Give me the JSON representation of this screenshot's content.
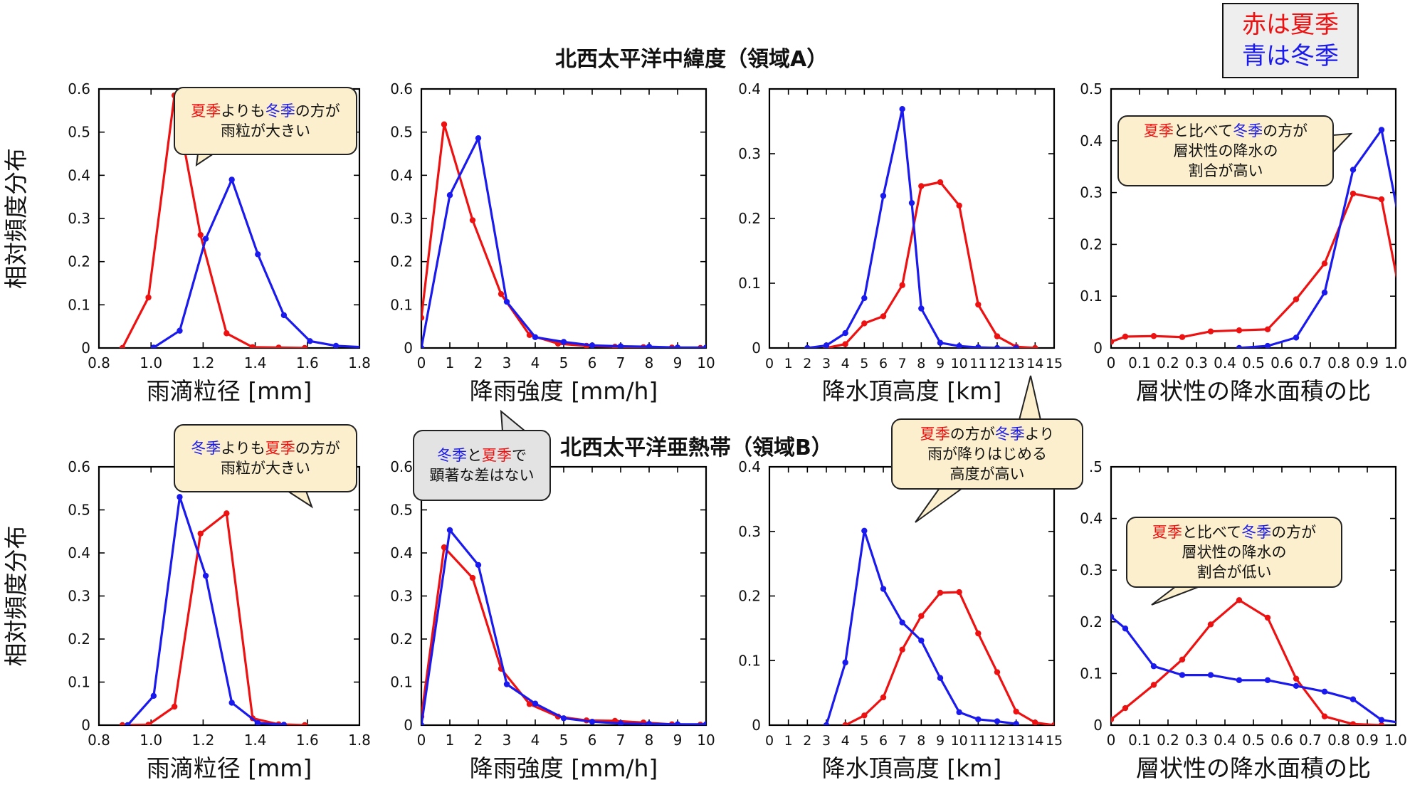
{
  "colors": {
    "summer": "#ee1111",
    "winter": "#1a1aee",
    "axis": "#000000"
  },
  "legend": {
    "summer_label": "赤は夏季",
    "winter_label": "青は冬季"
  },
  "region_titles": {
    "a": "北西太平洋中緯度（領域A）",
    "b": "北西太平洋亜熱帯（領域B）"
  },
  "callouts": [
    {
      "id": "A1",
      "parts": [
        [
          "夏季",
          "r"
        ],
        [
          "よりも",
          ""
        ],
        [
          "冬季",
          "b"
        ],
        [
          "の方が",
          ""
        ]
      ],
      "line2": "雨粒が大きい",
      "line3": ""
    },
    {
      "id": "A4",
      "parts": [
        [
          "夏季",
          "r"
        ],
        [
          "と比べて",
          ""
        ],
        [
          "冬季",
          "b"
        ],
        [
          "の方が",
          ""
        ]
      ],
      "line2": "層状性の降水の",
      "line3": "割合が高い"
    },
    {
      "id": "B1",
      "parts": [
        [
          "冬季",
          "b"
        ],
        [
          "よりも",
          ""
        ],
        [
          "夏季",
          "r"
        ],
        [
          "の方が",
          ""
        ]
      ],
      "line2": "雨粒が大きい",
      "line3": ""
    },
    {
      "id": "B2",
      "parts": [
        [
          "冬季",
          "b"
        ],
        [
          "と",
          ""
        ],
        [
          "夏季",
          "r"
        ],
        [
          "で",
          ""
        ]
      ],
      "line2": "顕著な差はない",
      "line3": ""
    },
    {
      "id": "B3",
      "parts": [
        [
          "夏季",
          "r"
        ],
        [
          "の方が",
          ""
        ],
        [
          "冬季",
          "b"
        ],
        [
          "より",
          ""
        ]
      ],
      "line2": "雨が降りはじめる",
      "line3": "高度が高い"
    },
    {
      "id": "B4",
      "parts": [
        [
          "夏季",
          "r"
        ],
        [
          "と比べて",
          ""
        ],
        [
          "冬季",
          "b"
        ],
        [
          "の方が",
          ""
        ]
      ],
      "line2": "層状性の降水の",
      "line3": "割合が低い"
    }
  ],
  "chart_data": [
    {
      "id": "A1",
      "type": "line",
      "xlabel": "雨滴粒径 [mm]",
      "ylabel": "相対頻度分布",
      "xlim": [
        0.8,
        1.8
      ],
      "ylim": [
        0,
        0.6
      ],
      "xticks": [
        0.8,
        1.0,
        1.2,
        1.4,
        1.6,
        1.8
      ],
      "xtick_labels": [
        "0.8",
        "1.0",
        "1.2",
        "1.4",
        "1.6",
        "1.8"
      ],
      "yticks": [
        0,
        0.1,
        0.2,
        0.3,
        0.4,
        0.5,
        0.6
      ],
      "ytick_labels": [
        "0",
        "0.1",
        "0.2",
        "0.3",
        "0.4",
        "0.5",
        "0.6"
      ],
      "series": [
        {
          "season": "summer",
          "x": [
            0.89,
            0.99,
            1.09,
            1.19,
            1.29,
            1.39,
            1.49,
            1.59
          ],
          "y": [
            0.0,
            0.117,
            0.585,
            0.262,
            0.034,
            0.002,
            0.001,
            0.0
          ]
        },
        {
          "season": "winter",
          "x": [
            1.01,
            1.11,
            1.21,
            1.31,
            1.41,
            1.51,
            1.61,
            1.71,
            1.81
          ],
          "y": [
            0.001,
            0.04,
            0.253,
            0.39,
            0.217,
            0.076,
            0.016,
            0.005,
            0.002
          ]
        }
      ]
    },
    {
      "id": "A2",
      "type": "line",
      "xlabel": "降雨強度 [mm/h]",
      "ylabel": "",
      "xlim": [
        0,
        10
      ],
      "ylim": [
        0,
        0.6
      ],
      "xticks": [
        0,
        1,
        2,
        3,
        4,
        5,
        6,
        7,
        8,
        9,
        10
      ],
      "xtick_labels": [
        "0",
        "1",
        "2",
        "3",
        "4",
        "5",
        "6",
        "7",
        "8",
        "9",
        "10"
      ],
      "yticks": [
        0,
        0.1,
        0.2,
        0.3,
        0.4,
        0.5,
        0.6
      ],
      "ytick_labels": [
        "0",
        "0.1",
        "0.2",
        "0.3",
        "0.4",
        "0.5",
        "0.6"
      ],
      "series": [
        {
          "season": "summer",
          "x": [
            0,
            0.8,
            1.8,
            2.8,
            3.8,
            4.8,
            5.8,
            6.8,
            7.8,
            8.8,
            9.8
          ],
          "y": [
            0.07,
            0.518,
            0.296,
            0.125,
            0.03,
            0.01,
            0.005,
            0.003,
            0.002,
            0.001,
            0.0
          ]
        },
        {
          "season": "winter",
          "x": [
            0,
            1,
            2,
            3,
            4,
            5,
            6,
            7,
            8,
            9,
            10
          ],
          "y": [
            0.0,
            0.354,
            0.486,
            0.107,
            0.025,
            0.014,
            0.006,
            0.004,
            0.003,
            0.001,
            0.001
          ]
        }
      ]
    },
    {
      "id": "A3",
      "type": "line",
      "xlabel": "降水頂高度 [km]",
      "ylabel": "",
      "xlim": [
        0,
        15
      ],
      "ylim": [
        0,
        0.4
      ],
      "xticks": [
        0,
        1,
        2,
        3,
        4,
        5,
        6,
        7,
        8,
        9,
        10,
        11,
        12,
        13,
        14,
        15
      ],
      "xtick_labels": [
        "0",
        "1",
        "2",
        "3",
        "4",
        "5",
        "6",
        "7",
        "8",
        "9",
        "10",
        "11",
        "12",
        "13",
        "14",
        "15"
      ],
      "yticks": [
        0,
        0.1,
        0.2,
        0.3,
        0.4
      ],
      "ytick_labels": [
        "0",
        "0.1",
        "0.2",
        "0.3",
        "0.4"
      ],
      "series": [
        {
          "season": "summer",
          "x": [
            3,
            4,
            5,
            6,
            7,
            8,
            9,
            10,
            11,
            12,
            13,
            14
          ],
          "y": [
            0.0,
            0.006,
            0.038,
            0.049,
            0.097,
            0.25,
            0.256,
            0.22,
            0.067,
            0.018,
            0.002,
            0.0
          ]
        },
        {
          "season": "winter",
          "x": [
            2,
            3,
            4,
            5,
            6,
            7,
            7.5,
            8,
            9,
            10,
            11,
            12,
            13
          ],
          "y": [
            0.0,
            0.004,
            0.023,
            0.077,
            0.235,
            0.369,
            0.224,
            0.061,
            0.008,
            0.003,
            0.001,
            0.0,
            0.0
          ]
        }
      ]
    },
    {
      "id": "A4",
      "type": "line",
      "xlabel": "層状性の降水面積の比",
      "ylabel": "",
      "xlim": [
        0,
        1.0
      ],
      "ylim": [
        0,
        0.5
      ],
      "xticks": [
        0,
        0.1,
        0.2,
        0.3,
        0.4,
        0.5,
        0.6,
        0.7,
        0.8,
        0.9,
        1.0
      ],
      "xtick_labels": [
        "0",
        "0.1",
        "0.2",
        "0.3",
        "0.4",
        "0.5",
        "0.6",
        "0.7",
        "0.8",
        "0.9",
        "1.0"
      ],
      "yticks": [
        0,
        0.1,
        0.2,
        0.3,
        0.4,
        0.5
      ],
      "ytick_labels": [
        "0",
        "0.1",
        "0.2",
        "0.3",
        "0.4",
        "0.5"
      ],
      "series": [
        {
          "season": "summer",
          "x": [
            0,
            0.05,
            0.15,
            0.25,
            0.35,
            0.45,
            0.55,
            0.65,
            0.75,
            0.85,
            0.95,
            1.05
          ],
          "y": [
            0.012,
            0.022,
            0.023,
            0.021,
            0.032,
            0.034,
            0.036,
            0.094,
            0.163,
            0.298,
            0.287,
            0.005
          ]
        },
        {
          "season": "winter",
          "x": [
            0.45,
            0.55,
            0.65,
            0.75,
            0.85,
            0.95,
            1.05
          ],
          "y": [
            0.0,
            0.004,
            0.02,
            0.107,
            0.344,
            0.421,
            0.14
          ]
        }
      ]
    },
    {
      "id": "B1",
      "type": "line",
      "xlabel": "雨滴粒径 [mm]",
      "ylabel": "相対頻度分布",
      "xlim": [
        0.8,
        1.8
      ],
      "ylim": [
        0,
        0.6
      ],
      "xticks": [
        0.8,
        1.0,
        1.2,
        1.4,
        1.6,
        1.8
      ],
      "xtick_labels": [
        "0.8",
        "1.0",
        "1.2",
        "1.4",
        "1.6",
        "1.8"
      ],
      "yticks": [
        0,
        0.1,
        0.2,
        0.3,
        0.4,
        0.5,
        0.6
      ],
      "ytick_labels": [
        "0",
        "0.1",
        "0.2",
        "0.3",
        "0.4",
        "0.5",
        "0.6"
      ],
      "series": [
        {
          "season": "summer",
          "x": [
            0.89,
            0.99,
            1.09,
            1.19,
            1.29,
            1.39,
            1.49,
            1.59
          ],
          "y": [
            0.0,
            0.001,
            0.043,
            0.445,
            0.492,
            0.016,
            0.002,
            0.0
          ]
        },
        {
          "season": "winter",
          "x": [
            0.91,
            1.01,
            1.11,
            1.21,
            1.31,
            1.41,
            1.51
          ],
          "y": [
            0.0,
            0.068,
            0.53,
            0.347,
            0.052,
            0.005,
            0.001
          ]
        }
      ]
    },
    {
      "id": "B2",
      "type": "line",
      "xlabel": "降雨強度 [mm/h]",
      "ylabel": "",
      "xlim": [
        0,
        10
      ],
      "ylim": [
        0,
        0.6
      ],
      "xticks": [
        0,
        1,
        2,
        3,
        4,
        5,
        6,
        7,
        8,
        9,
        10
      ],
      "xtick_labels": [
        "0",
        "1",
        "2",
        "3",
        "4",
        "5",
        "6",
        "7",
        "8",
        "9",
        "10"
      ],
      "yticks": [
        0,
        0.1,
        0.2,
        0.3,
        0.4,
        0.5,
        0.6
      ],
      "ytick_labels": [
        "0",
        "0.1",
        "0.2",
        "0.3",
        "0.4",
        "0.5",
        "0.6"
      ],
      "series": [
        {
          "season": "summer",
          "x": [
            0,
            0.8,
            1.8,
            2.8,
            3.8,
            4.8,
            5.8,
            6.8,
            7.8,
            8.8,
            9.8
          ],
          "y": [
            0.02,
            0.413,
            0.342,
            0.131,
            0.049,
            0.02,
            0.011,
            0.01,
            0.006,
            0.002,
            0.001
          ]
        },
        {
          "season": "winter",
          "x": [
            0,
            1,
            2,
            3,
            4,
            5,
            6,
            7,
            8,
            9,
            10
          ],
          "y": [
            0.0,
            0.453,
            0.372,
            0.095,
            0.05,
            0.016,
            0.008,
            0.004,
            0.003,
            0.002,
            0.002
          ]
        }
      ]
    },
    {
      "id": "B3",
      "type": "line",
      "xlabel": "降水頂高度 [km]",
      "ylabel": "",
      "xlim": [
        0,
        15
      ],
      "ylim": [
        0,
        0.4
      ],
      "xticks": [
        0,
        1,
        2,
        3,
        4,
        5,
        6,
        7,
        8,
        9,
        10,
        11,
        12,
        13,
        14,
        15
      ],
      "xtick_labels": [
        "0",
        "1",
        "2",
        "3",
        "4",
        "5",
        "6",
        "7",
        "8",
        "9",
        "10",
        "11",
        "12",
        "13",
        "14",
        "15"
      ],
      "yticks": [
        0,
        0.1,
        0.2,
        0.3,
        0.4
      ],
      "ytick_labels": [
        "0",
        "0.1",
        "0.2",
        "0.3",
        "0.4"
      ],
      "series": [
        {
          "season": "summer",
          "x": [
            4,
            5,
            6,
            7,
            8,
            9,
            10,
            11,
            12,
            13,
            14,
            15
          ],
          "y": [
            0.0,
            0.015,
            0.043,
            0.117,
            0.169,
            0.205,
            0.206,
            0.142,
            0.082,
            0.021,
            0.004,
            0.0
          ]
        },
        {
          "season": "winter",
          "x": [
            3,
            4,
            5,
            6,
            7,
            8,
            9,
            10,
            11,
            12,
            13
          ],
          "y": [
            0.0,
            0.097,
            0.301,
            0.211,
            0.159,
            0.131,
            0.073,
            0.02,
            0.009,
            0.006,
            0.002
          ]
        }
      ]
    },
    {
      "id": "B4",
      "type": "line",
      "xlabel": "層状性の降水面積の比",
      "ylabel": "",
      "xlim": [
        0,
        1.0
      ],
      "ylim": [
        0,
        0.5
      ],
      "xticks": [
        0,
        0.1,
        0.2,
        0.3,
        0.4,
        0.5,
        0.6,
        0.7,
        0.8,
        0.9,
        1.0
      ],
      "xtick_labels": [
        "0",
        "0.1",
        "0.2",
        "0.3",
        "0.4",
        "0.5",
        "0.6",
        "0.7",
        "0.8",
        "0.9",
        "1.0"
      ],
      "yticks": [
        0,
        0.1,
        0.2,
        0.3,
        0.4,
        0.5
      ],
      "ytick_labels": [
        "0",
        "0.1",
        "0.2",
        "0.3",
        "0.4",
        ".5"
      ],
      "series": [
        {
          "season": "summer",
          "x": [
            0,
            0.05,
            0.15,
            0.25,
            0.35,
            0.45,
            0.55,
            0.65,
            0.75,
            0.85,
            0.95
          ],
          "y": [
            0.011,
            0.033,
            0.078,
            0.127,
            0.195,
            0.242,
            0.208,
            0.09,
            0.017,
            0.002,
            0.0
          ]
        },
        {
          "season": "winter",
          "x": [
            0,
            0.05,
            0.15,
            0.25,
            0.35,
            0.45,
            0.55,
            0.65,
            0.75,
            0.85,
            0.95,
            1.05
          ],
          "y": [
            0.21,
            0.187,
            0.114,
            0.097,
            0.097,
            0.087,
            0.087,
            0.076,
            0.065,
            0.05,
            0.01,
            0.002
          ]
        }
      ]
    }
  ]
}
